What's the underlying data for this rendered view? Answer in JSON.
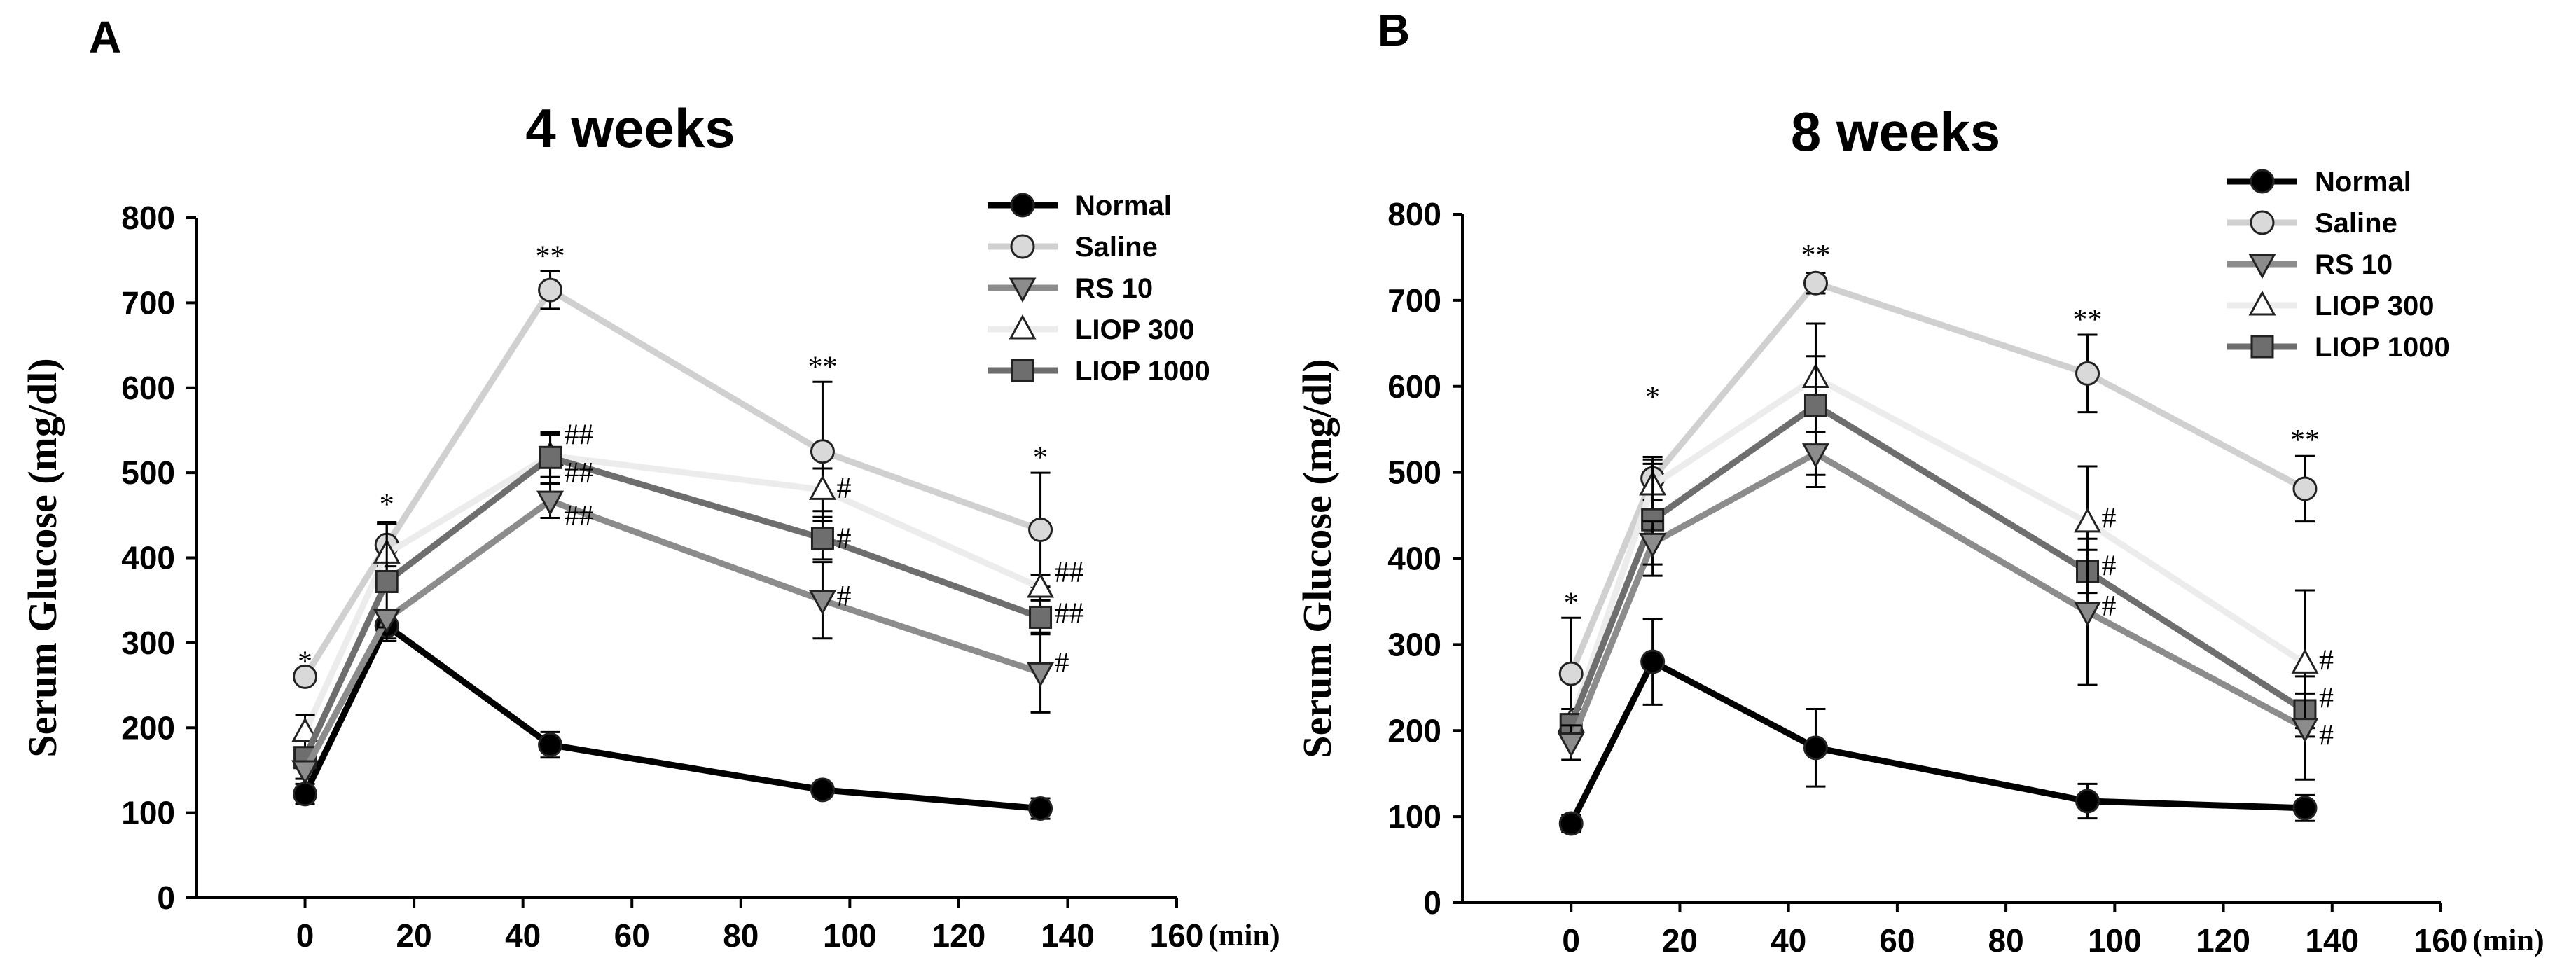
{
  "chart_data": [
    {
      "panel": "A",
      "type": "line",
      "title": "4 weeks",
      "xlabel": "",
      "x_unit": "(min)",
      "ylabel": "Serum Glucose (mg/dl)",
      "xlim": [
        -20,
        160
      ],
      "ylim": [
        0,
        800
      ],
      "xticks": [
        0,
        20,
        40,
        60,
        80,
        100,
        120,
        140,
        160
      ],
      "yticks": [
        0,
        100,
        200,
        300,
        400,
        500,
        600,
        700,
        800
      ],
      "x": [
        0,
        15,
        45,
        95,
        135
      ],
      "legend_position": "top-right",
      "series": [
        {
          "name": "Normal",
          "color": "#000000",
          "marker": "circle",
          "marker_fill": "#000000",
          "values": [
            122,
            320,
            180,
            127,
            105
          ],
          "errors": [
            12,
            15,
            15,
            8,
            12
          ]
        },
        {
          "name": "Saline",
          "color": "#d0d0d0",
          "marker": "circle",
          "marker_fill": "#d9d9d9",
          "values": [
            260,
            415,
            715,
            525,
            433
          ],
          "errors": [
            0,
            25,
            22,
            82,
            67
          ]
        },
        {
          "name": "RS 10",
          "color": "#8c8c8c",
          "marker": "triangle-down",
          "marker_fill": "#8c8c8c",
          "values": [
            150,
            328,
            467,
            350,
            265
          ],
          "errors": [
            10,
            10,
            20,
            45,
            47
          ]
        },
        {
          "name": "LIOP 300",
          "color": "#ececec",
          "marker": "triangle-up",
          "marker_fill": "#ffffff",
          "values": [
            195,
            405,
            520,
            480,
            365
          ],
          "errors": [
            20,
            35,
            25,
            25,
            15
          ]
        },
        {
          "name": "LIOP 1000",
          "color": "#6e6e6e",
          "marker": "square",
          "marker_fill": "#6e6e6e",
          "values": [
            165,
            372,
            518,
            423,
            330
          ],
          "errors": [
            12,
            70,
            30,
            25,
            20
          ]
        }
      ],
      "annotations": [
        {
          "text": "*",
          "x": 0,
          "y": 260,
          "position": "above"
        },
        {
          "text": "*",
          "x": 15,
          "y": 445,
          "position": "above"
        },
        {
          "text": "**",
          "x": 45,
          "y": 737,
          "position": "above"
        },
        {
          "text": "**",
          "x": 95,
          "y": 607,
          "position": "above"
        },
        {
          "text": "*",
          "x": 135,
          "y": 500,
          "position": "above"
        },
        {
          "text": "##",
          "x": 45,
          "y": 545,
          "position": "right"
        },
        {
          "text": "##",
          "x": 45,
          "y": 500,
          "position": "right"
        },
        {
          "text": "##",
          "x": 45,
          "y": 450,
          "position": "right"
        },
        {
          "text": "#",
          "x": 95,
          "y": 482,
          "position": "right"
        },
        {
          "text": "#",
          "x": 95,
          "y": 423,
          "position": "right"
        },
        {
          "text": "#",
          "x": 95,
          "y": 355,
          "position": "right"
        },
        {
          "text": "##",
          "x": 135,
          "y": 383,
          "position": "right"
        },
        {
          "text": "##",
          "x": 135,
          "y": 335,
          "position": "right"
        },
        {
          "text": "#",
          "x": 135,
          "y": 277,
          "position": "right"
        }
      ]
    },
    {
      "panel": "B",
      "type": "line",
      "title": "8 weeks",
      "xlabel": "",
      "x_unit": "(min)",
      "ylabel": "Serum Glucose (mg/dl)",
      "xlim": [
        -20,
        160
      ],
      "ylim": [
        0,
        800
      ],
      "xticks": [
        0,
        20,
        40,
        60,
        80,
        100,
        120,
        140,
        160
      ],
      "yticks": [
        0,
        100,
        200,
        300,
        400,
        500,
        600,
        700,
        800
      ],
      "x": [
        0,
        15,
        45,
        95,
        135
      ],
      "legend_position": "top-right",
      "series": [
        {
          "name": "Normal",
          "color": "#000000",
          "marker": "circle",
          "marker_fill": "#000000",
          "values": [
            92,
            280,
            180,
            118,
            110
          ],
          "errors": [
            10,
            50,
            45,
            20,
            15
          ]
        },
        {
          "name": "Saline",
          "color": "#d0d0d0",
          "marker": "circle",
          "marker_fill": "#d9d9d9",
          "values": [
            266,
            493,
            720,
            615,
            481
          ],
          "errors": [
            65,
            25,
            12,
            45,
            38
          ]
        },
        {
          "name": "RS 10",
          "color": "#8c8c8c",
          "marker": "triangle-down",
          "marker_fill": "#8c8c8c",
          "values": [
            186,
            418,
            522,
            338,
            203
          ],
          "errors": [
            20,
            25,
            25,
            85,
            60
          ]
        },
        {
          "name": "LIOP 300",
          "color": "#ececec",
          "marker": "triangle-up",
          "marker_fill": "#ffffff",
          "values": [
            210,
            485,
            610,
            442,
            278
          ],
          "errors": [
            15,
            30,
            25,
            65,
            85
          ]
        },
        {
          "name": "LIOP 1000",
          "color": "#6e6e6e",
          "marker": "square",
          "marker_fill": "#6e6e6e",
          "values": [
            207,
            445,
            578,
            385,
            223
          ],
          "errors": [
            12,
            65,
            95,
            25,
            20
          ]
        }
      ],
      "annotations": [
        {
          "text": "*",
          "x": 0,
          "y": 331,
          "position": "above"
        },
        {
          "text": "*",
          "x": 15,
          "y": 570,
          "position": "above"
        },
        {
          "text": "**",
          "x": 45,
          "y": 735,
          "position": "above"
        },
        {
          "text": "**",
          "x": 95,
          "y": 660,
          "position": "above"
        },
        {
          "text": "**",
          "x": 135,
          "y": 520,
          "position": "above"
        },
        {
          "text": "#",
          "x": 95,
          "y": 447,
          "position": "right"
        },
        {
          "text": "#",
          "x": 95,
          "y": 392,
          "position": "right"
        },
        {
          "text": "#",
          "x": 95,
          "y": 345,
          "position": "right"
        },
        {
          "text": "#",
          "x": 135,
          "y": 282,
          "position": "right"
        },
        {
          "text": "#",
          "x": 135,
          "y": 238,
          "position": "right"
        },
        {
          "text": "#",
          "x": 135,
          "y": 195,
          "position": "right"
        }
      ]
    }
  ]
}
